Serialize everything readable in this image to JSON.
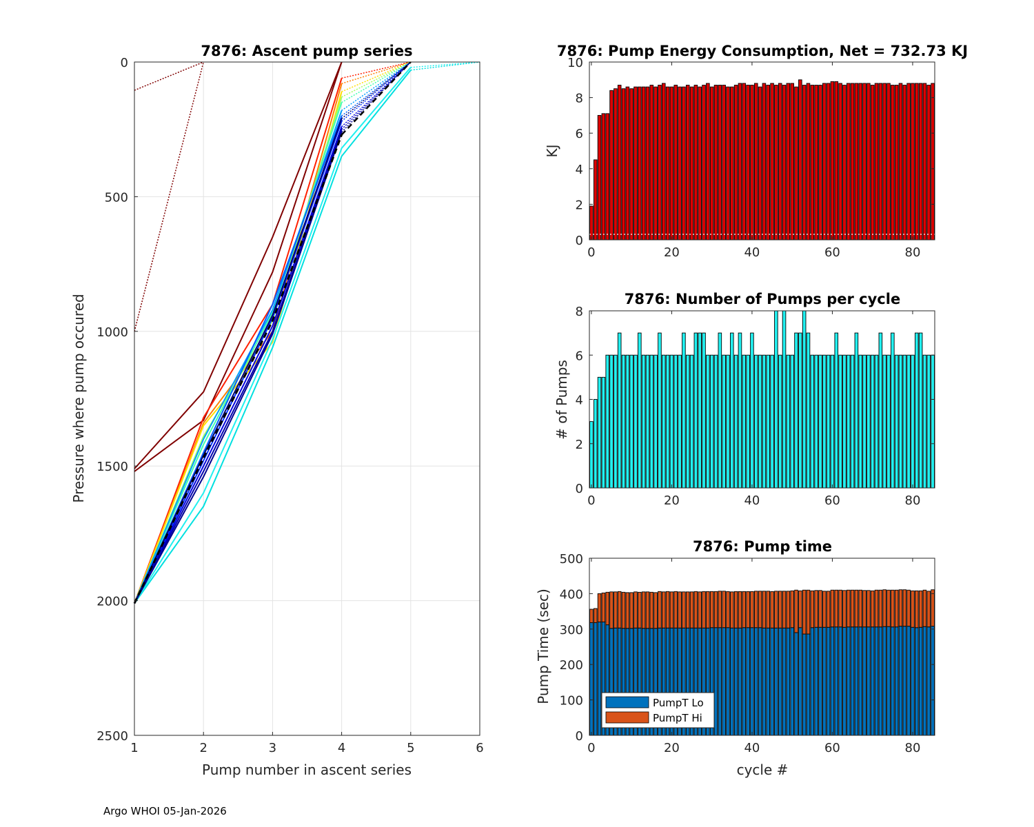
{
  "footer": "Argo WHOI 05-Jan-2026",
  "chart_data": [
    {
      "id": "ascent",
      "type": "line",
      "title": "7876: Ascent pump series",
      "xlabel": "Pump number in ascent series",
      "ylabel": "Pressure where pump occured",
      "xlim": [
        1,
        6
      ],
      "ylim": [
        0,
        2500
      ],
      "y_reversed": true,
      "grid": true,
      "xticks": [
        "1",
        "2",
        "3",
        "4",
        "5",
        "6"
      ],
      "yticks": [
        "0",
        "500",
        "1000",
        "1500",
        "2000",
        "2500"
      ],
      "series": [
        {
          "name": "early-1",
          "color": "#800000",
          "x": [
            1,
            2,
            3,
            4
          ],
          "y": [
            1520,
            1330,
            780,
            0
          ],
          "dotted_from": 3
        },
        {
          "name": "early-2",
          "color": "#800000",
          "x": [
            1,
            2,
            3,
            4
          ],
          "y": [
            1510,
            1225,
            650,
            0
          ],
          "dotted_from": 3
        },
        {
          "name": "early-3",
          "color": "#800000",
          "x": [
            1,
            2
          ],
          "y": [
            1000,
            0
          ],
          "dotted_from": 0
        },
        {
          "name": "early-4",
          "color": "#800000",
          "x": [
            1,
            2
          ],
          "y": [
            105,
            0
          ],
          "dotted_from": 0
        },
        {
          "name": "c-red-1",
          "color": "#ff2000",
          "x": [
            1,
            2,
            3,
            4,
            5
          ],
          "y": [
            2010,
            1320,
            900,
            60,
            0
          ],
          "dotted_from": 3
        },
        {
          "name": "c-orange-1",
          "color": "#ff8000",
          "x": [
            1,
            2,
            3,
            4,
            5
          ],
          "y": [
            2010,
            1340,
            1000,
            80,
            0
          ],
          "dotted_from": 3
        },
        {
          "name": "c-yellow-1",
          "color": "#ffe000",
          "x": [
            1,
            2,
            3,
            4,
            5
          ],
          "y": [
            2010,
            1350,
            1040,
            110,
            0
          ],
          "dotted_from": 3
        },
        {
          "name": "c-lime-1",
          "color": "#a0ff60",
          "x": [
            1,
            2,
            3,
            4,
            5
          ],
          "y": [
            2010,
            1390,
            960,
            130,
            0
          ],
          "dotted_from": 3
        },
        {
          "name": "c-green-1",
          "color": "#40ffb0",
          "x": [
            1,
            2,
            3,
            4,
            5
          ],
          "y": [
            2010,
            1420,
            930,
            150,
            0
          ],
          "dotted_from": 3
        },
        {
          "name": "c-cyan-1",
          "color": "#00e0e0",
          "x": [
            1,
            2,
            3,
            4,
            5,
            6
          ],
          "y": [
            2010,
            1650,
            1060,
            350,
            30,
            0
          ],
          "dotted_from": 4
        },
        {
          "name": "c-cyan-2",
          "color": "#20f0f0",
          "x": [
            1,
            2,
            3,
            4,
            5,
            6
          ],
          "y": [
            2010,
            1600,
            1030,
            320,
            20,
            0
          ],
          "dotted_from": 4
        },
        {
          "name": "c-lightblue-1",
          "color": "#00a0ff",
          "x": [
            1,
            2,
            3,
            4,
            5
          ],
          "y": [
            2010,
            1400,
            920,
            180,
            0
          ],
          "dotted_from": 3
        },
        {
          "name": "c-blue-1",
          "color": "#0060ff",
          "x": [
            1,
            2,
            3,
            4,
            5
          ],
          "y": [
            2010,
            1450,
            900,
            200,
            0
          ],
          "dotted_from": 3
        },
        {
          "name": "c-blue-2",
          "color": "#0030ff",
          "x": [
            1,
            2,
            3,
            4,
            5
          ],
          "y": [
            2010,
            1480,
            950,
            220,
            0
          ],
          "dotted_from": 3
        },
        {
          "name": "c-blue-3",
          "color": "#0000e0",
          "x": [
            1,
            2,
            3,
            4,
            5
          ],
          "y": [
            2010,
            1500,
            980,
            240,
            0
          ],
          "dotted_from": 3
        },
        {
          "name": "c-navy-1",
          "color": "#0000b0",
          "x": [
            1,
            2,
            3,
            4,
            5
          ],
          "y": [
            2010,
            1520,
            1000,
            250,
            0
          ],
          "dotted_from": 3
        },
        {
          "name": "c-navy-2",
          "color": "#000090",
          "x": [
            1,
            2,
            3,
            4,
            5
          ],
          "y": [
            2010,
            1540,
            1010,
            260,
            0
          ],
          "dotted_from": 3
        },
        {
          "name": "c-navy-3",
          "color": "#000070",
          "x": [
            1,
            2,
            3,
            4,
            5
          ],
          "y": [
            2010,
            1460,
            940,
            210,
            0
          ],
          "dotted_from": 3
        },
        {
          "name": "c-latest",
          "color": "#000000",
          "x": [
            1,
            2,
            3,
            4,
            5
          ],
          "y": [
            2010,
            1470,
            960,
            270,
            0
          ],
          "dotted_from": 3,
          "width": 3,
          "dash": "8,5"
        }
      ]
    },
    {
      "id": "energy",
      "type": "bar",
      "title": "7876: Pump Energy Consumption,  Net = 732.73 KJ",
      "xlabel": "",
      "ylabel": "KJ",
      "xlim": [
        -0.5,
        85.5
      ],
      "ylim": [
        0,
        10
      ],
      "xticks": [
        "0",
        "20",
        "40",
        "60",
        "80"
      ],
      "yticks": [
        "0",
        "2",
        "4",
        "6",
        "8",
        "10"
      ],
      "color": "#dd0000",
      "values": [
        1.9,
        4.5,
        7.0,
        7.1,
        7.1,
        8.4,
        8.5,
        8.7,
        8.5,
        8.6,
        8.5,
        8.6,
        8.6,
        8.6,
        8.6,
        8.7,
        8.6,
        8.7,
        8.8,
        8.6,
        8.6,
        8.7,
        8.6,
        8.6,
        8.7,
        8.6,
        8.7,
        8.6,
        8.7,
        8.8,
        8.6,
        8.7,
        8.7,
        8.7,
        8.6,
        8.6,
        8.7,
        8.8,
        8.8,
        8.7,
        8.7,
        8.8,
        8.6,
        8.8,
        8.7,
        8.8,
        8.7,
        8.8,
        8.7,
        8.8,
        8.8,
        8.6,
        9.0,
        8.7,
        8.8,
        8.7,
        8.7,
        8.7,
        8.8,
        8.8,
        8.9,
        8.9,
        8.8,
        8.7,
        8.8,
        8.8,
        8.8,
        8.8,
        8.8,
        8.8,
        8.7,
        8.8,
        8.8,
        8.8,
        8.8,
        8.7,
        8.7,
        8.8,
        8.7,
        8.8,
        8.8,
        8.8,
        8.8,
        8.8,
        8.7,
        8.8
      ]
    },
    {
      "id": "pumps",
      "type": "bar",
      "title": "7876: Number of Pumps per cycle",
      "xlabel": "",
      "ylabel": "# of Pumps",
      "xlim": [
        -0.5,
        85.5
      ],
      "ylim": [
        0,
        8
      ],
      "xticks": [
        "0",
        "20",
        "40",
        "60",
        "80"
      ],
      "yticks": [
        "0",
        "2",
        "4",
        "6",
        "8"
      ],
      "color": "#22f0f0",
      "values": [
        3,
        4,
        5,
        5,
        6,
        6,
        6,
        7,
        6,
        6,
        6,
        6,
        7,
        6,
        6,
        6,
        6,
        7,
        6,
        6,
        6,
        6,
        6,
        7,
        6,
        6,
        7,
        7,
        7,
        6,
        6,
        6,
        7,
        6,
        6,
        7,
        6,
        7,
        6,
        6,
        7,
        6,
        6,
        6,
        6,
        6,
        8,
        6,
        8,
        6,
        6,
        7,
        7,
        8,
        7,
        6,
        6,
        6,
        6,
        6,
        6,
        7,
        6,
        6,
        6,
        6,
        7,
        6,
        6,
        6,
        6,
        6,
        7,
        6,
        6,
        7,
        6,
        6,
        6,
        6,
        6,
        7,
        7,
        6,
        6,
        6
      ]
    },
    {
      "id": "pumptime",
      "type": "bar",
      "stacked": true,
      "title": "7876: Pump time",
      "xlabel": "cycle #",
      "ylabel": "Pump Time (sec)",
      "xlim": [
        -0.5,
        85.5
      ],
      "ylim": [
        0,
        500
      ],
      "xticks": [
        "0",
        "20",
        "40",
        "60",
        "80"
      ],
      "yticks": [
        "0",
        "100",
        "200",
        "300",
        "400",
        "500"
      ],
      "legend": "bottom-left",
      "series": [
        {
          "name": "PumpT Lo",
          "color": "#0072bd",
          "values": [
            318,
            318,
            320,
            320,
            312,
            302,
            303,
            303,
            302,
            302,
            302,
            303,
            303,
            302,
            302,
            302,
            302,
            303,
            303,
            303,
            303,
            303,
            303,
            303,
            303,
            303,
            303,
            303,
            303,
            303,
            304,
            304,
            304,
            304,
            304,
            303,
            303,
            303,
            304,
            304,
            304,
            304,
            304,
            303,
            303,
            303,
            303,
            303,
            303,
            303,
            304,
            290,
            304,
            286,
            286,
            304,
            305,
            305,
            305,
            305,
            306,
            306,
            306,
            305,
            306,
            306,
            306,
            306,
            306,
            306,
            306,
            306,
            306,
            307,
            307,
            306,
            306,
            308,
            308,
            308,
            305,
            304,
            305,
            307,
            306,
            308
          ]
        },
        {
          "name": "PumpT Hi",
          "color": "#d95319",
          "values": [
            38,
            40,
            80,
            82,
            92,
            103,
            102,
            103,
            102,
            101,
            101,
            102,
            101,
            103,
            103,
            102,
            101,
            103,
            102,
            103,
            102,
            103,
            102,
            102,
            102,
            102,
            103,
            102,
            103,
            103,
            102,
            102,
            103,
            103,
            102,
            102,
            103,
            103,
            102,
            102,
            102,
            103,
            103,
            104,
            104,
            103,
            104,
            104,
            104,
            104,
            104,
            120,
            104,
            124,
            124,
            104,
            104,
            104,
            102,
            102,
            104,
            104,
            104,
            104,
            104,
            104,
            104,
            104,
            103,
            103,
            102,
            104,
            104,
            104,
            103,
            104,
            104,
            103,
            103,
            102,
            103,
            104,
            103,
            103,
            101,
            103
          ]
        }
      ]
    }
  ]
}
